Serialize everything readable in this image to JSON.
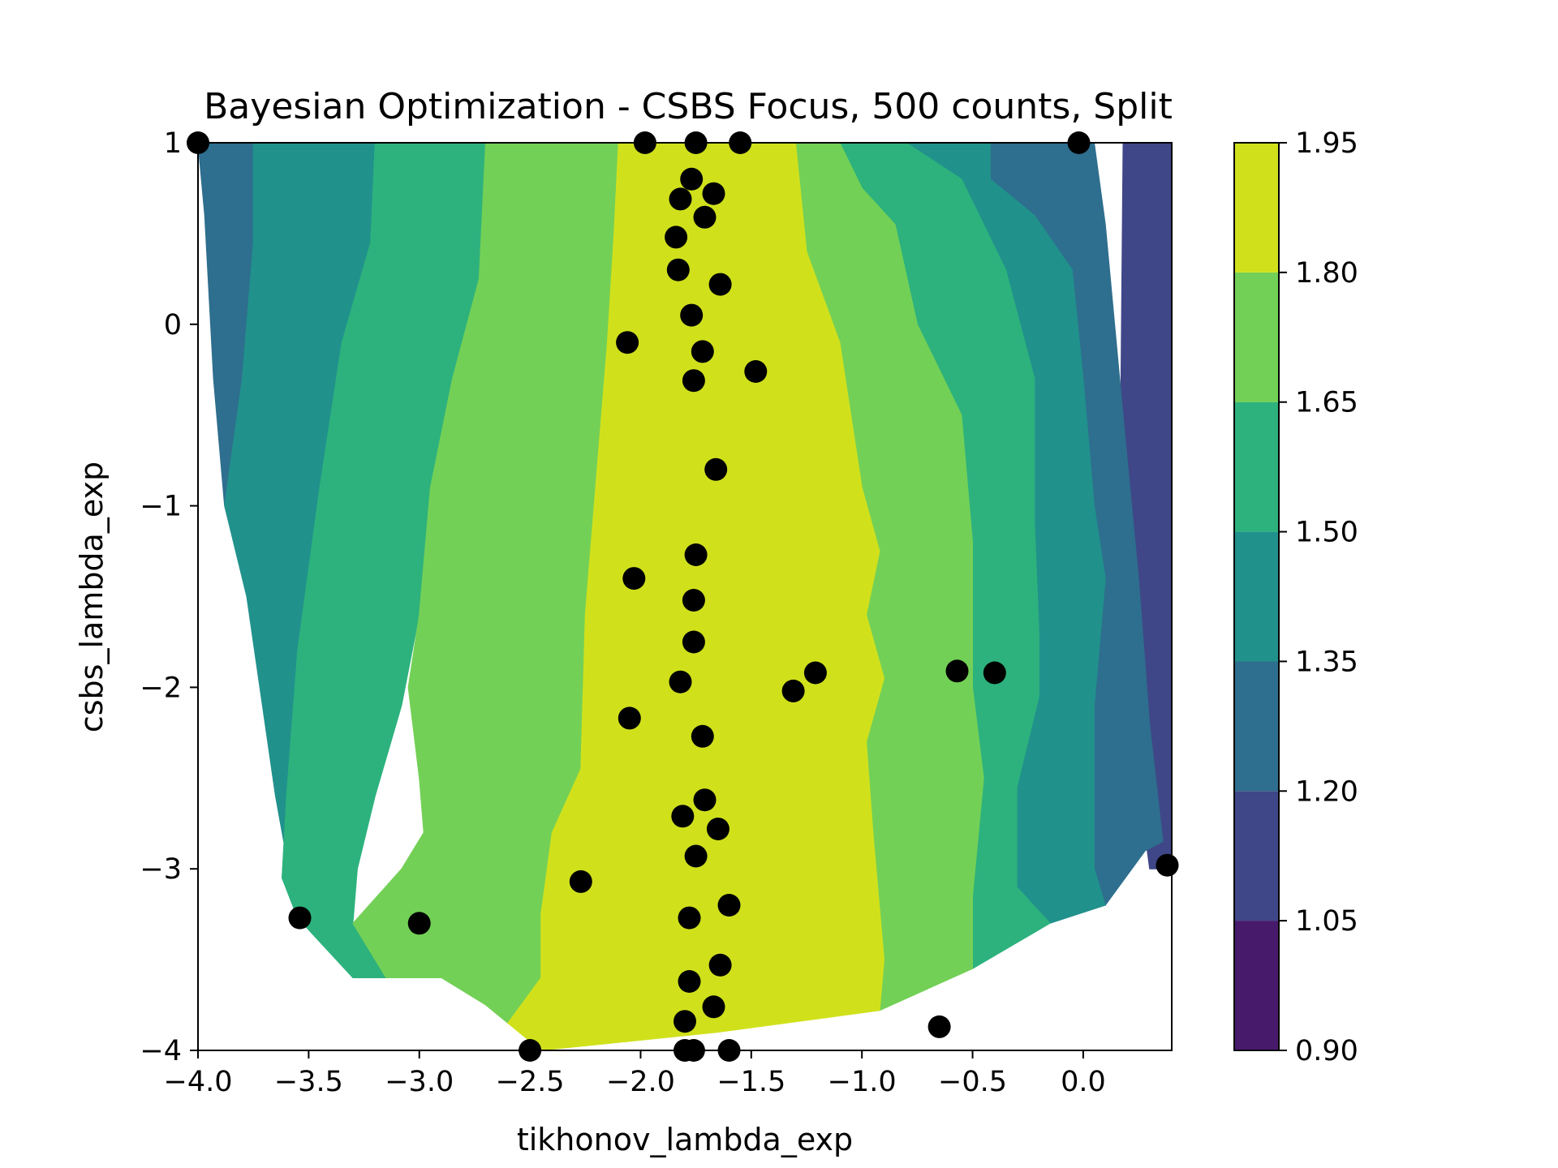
{
  "chart_data": {
    "type": "contour",
    "title": "Bayesian Optimization - CSBS Focus, 500 counts, Split",
    "xlabel": "tikhonov_lambda_exp",
    "ylabel": "csbs_lambda_exp",
    "xlim": [
      -4.0,
      0.4
    ],
    "ylim": [
      -4,
      1
    ],
    "xticks": [
      {
        "value": -4.0,
        "label": "−4.0"
      },
      {
        "value": -3.5,
        "label": "−3.5"
      },
      {
        "value": -3.0,
        "label": "−3.0"
      },
      {
        "value": -2.5,
        "label": "−2.5"
      },
      {
        "value": -2.0,
        "label": "−2.0"
      },
      {
        "value": -1.5,
        "label": "−1.5"
      },
      {
        "value": -1.0,
        "label": "−1.0"
      },
      {
        "value": -0.5,
        "label": "−0.5"
      },
      {
        "value": 0.0,
        "label": "0.0"
      }
    ],
    "yticks": [
      {
        "value": 1,
        "label": "1"
      },
      {
        "value": 0,
        "label": "0"
      },
      {
        "value": -1,
        "label": "−1"
      },
      {
        "value": -2,
        "label": "−2"
      },
      {
        "value": -3,
        "label": "−3"
      },
      {
        "value": -4,
        "label": "−4"
      }
    ],
    "colorbar": {
      "levels": [
        0.9,
        1.05,
        1.2,
        1.35,
        1.5,
        1.65,
        1.8,
        1.95
      ],
      "labels": [
        "0.90",
        "1.05",
        "1.20",
        "1.35",
        "1.50",
        "1.65",
        "1.80",
        "1.95"
      ],
      "colors": [
        "#481a6c",
        "#3f4788",
        "#2e6e8e",
        "#21918c",
        "#2db27d",
        "#73d056",
        "#d0e11c"
      ]
    },
    "contour_bands": [
      {
        "level_index": 1,
        "points": [
          [
            0.18,
            1
          ],
          [
            0.4,
            1
          ],
          [
            0.4,
            -3.0
          ],
          [
            0.3,
            -3.0
          ],
          [
            0.23,
            -2.35
          ],
          [
            0.16,
            -1.75
          ]
        ]
      },
      {
        "level_index": 2,
        "points": [
          [
            -4.0,
            1
          ],
          [
            -3.75,
            1
          ],
          [
            -3.75,
            0.45
          ],
          [
            -3.8,
            -0.3
          ],
          [
            -3.88,
            -1.0
          ],
          [
            -3.93,
            -0.3
          ],
          [
            -3.97,
            0.6
          ]
        ]
      },
      {
        "level_index": 2,
        "points": [
          [
            -0.42,
            1
          ],
          [
            0.05,
            1
          ],
          [
            0.1,
            0.55
          ],
          [
            0.18,
            -0.5
          ],
          [
            0.25,
            -1.4
          ],
          [
            0.3,
            -2.2
          ],
          [
            0.36,
            -2.85
          ],
          [
            0.28,
            -2.9
          ],
          [
            0.1,
            -3.2
          ],
          [
            0.05,
            -3.0
          ],
          [
            0.05,
            -2.1
          ],
          [
            0.1,
            -1.4
          ],
          [
            0.05,
            -1.0
          ],
          [
            0.0,
            -0.3
          ],
          [
            -0.05,
            0.3
          ],
          [
            -0.22,
            0.6
          ],
          [
            -0.42,
            0.8
          ]
        ]
      },
      {
        "level_index": 3,
        "points": [
          [
            -3.75,
            1
          ],
          [
            -3.2,
            1
          ],
          [
            -3.22,
            0.45
          ],
          [
            -3.35,
            -0.1
          ],
          [
            -3.45,
            -0.9
          ],
          [
            -3.55,
            -1.8
          ],
          [
            -3.6,
            -2.6
          ],
          [
            -3.62,
            -3.05
          ],
          [
            -3.55,
            -3.27
          ],
          [
            -3.65,
            -2.6
          ],
          [
            -3.78,
            -1.5
          ],
          [
            -3.88,
            -1.0
          ],
          [
            -3.8,
            -0.3
          ],
          [
            -3.75,
            0.45
          ]
        ]
      },
      {
        "level_index": 3,
        "points": [
          [
            -0.8,
            1
          ],
          [
            -0.42,
            1
          ],
          [
            -0.42,
            0.8
          ],
          [
            -0.22,
            0.6
          ],
          [
            -0.05,
            0.3
          ],
          [
            0.0,
            -0.3
          ],
          [
            0.05,
            -1.0
          ],
          [
            0.1,
            -1.4
          ],
          [
            0.05,
            -2.1
          ],
          [
            0.05,
            -3.0
          ],
          [
            0.1,
            -3.2
          ],
          [
            -0.15,
            -3.3
          ],
          [
            -0.3,
            -3.1
          ],
          [
            -0.3,
            -2.55
          ],
          [
            -0.2,
            -2.05
          ],
          [
            -0.2,
            -1.7
          ],
          [
            -0.22,
            -1.1
          ],
          [
            -0.22,
            -0.3
          ],
          [
            -0.35,
            0.3
          ],
          [
            -0.55,
            0.8
          ]
        ]
      },
      {
        "level_index": 4,
        "points": [
          [
            -3.2,
            1
          ],
          [
            -2.7,
            1
          ],
          [
            -2.73,
            0.25
          ],
          [
            -2.85,
            -0.3
          ],
          [
            -2.95,
            -0.9
          ],
          [
            -3.0,
            -1.6
          ],
          [
            -3.08,
            -2.1
          ],
          [
            -3.2,
            -2.6
          ],
          [
            -3.28,
            -3.0
          ],
          [
            -3.3,
            -3.3
          ],
          [
            -3.15,
            -3.6
          ],
          [
            -3.3,
            -3.6
          ],
          [
            -3.55,
            -3.27
          ],
          [
            -3.62,
            -3.05
          ],
          [
            -3.6,
            -2.6
          ],
          [
            -3.55,
            -1.8
          ],
          [
            -3.45,
            -0.9
          ],
          [
            -3.35,
            -0.1
          ],
          [
            -3.22,
            0.45
          ]
        ]
      },
      {
        "level_index": 4,
        "points": [
          [
            -1.1,
            1
          ],
          [
            -0.8,
            1
          ],
          [
            -0.55,
            0.8
          ],
          [
            -0.35,
            0.3
          ],
          [
            -0.22,
            -0.3
          ],
          [
            -0.22,
            -1.1
          ],
          [
            -0.2,
            -1.7
          ],
          [
            -0.2,
            -2.05
          ],
          [
            -0.3,
            -2.55
          ],
          [
            -0.3,
            -3.1
          ],
          [
            -0.15,
            -3.3
          ],
          [
            -0.5,
            -3.55
          ],
          [
            -0.5,
            -3.15
          ],
          [
            -0.45,
            -2.5
          ],
          [
            -0.5,
            -2.0
          ],
          [
            -0.5,
            -1.2
          ],
          [
            -0.55,
            -0.5
          ],
          [
            -0.75,
            0.0
          ],
          [
            -0.85,
            0.55
          ],
          [
            -1.0,
            0.75
          ]
        ]
      },
      {
        "level_index": 5,
        "points": [
          [
            -2.7,
            1
          ],
          [
            -2.1,
            1
          ],
          [
            -2.12,
            0.5
          ],
          [
            -2.15,
            -0.1
          ],
          [
            -2.2,
            -0.85
          ],
          [
            -2.25,
            -1.6
          ],
          [
            -2.27,
            -2.45
          ],
          [
            -2.4,
            -2.8
          ],
          [
            -2.45,
            -3.25
          ],
          [
            -2.45,
            -3.6
          ],
          [
            -2.6,
            -3.85
          ],
          [
            -2.7,
            -3.75
          ],
          [
            -2.9,
            -3.6
          ],
          [
            -3.15,
            -3.6
          ],
          [
            -3.3,
            -3.3
          ],
          [
            -3.08,
            -3.0
          ],
          [
            -2.98,
            -2.8
          ],
          [
            -3.0,
            -2.5
          ],
          [
            -3.05,
            -2.0
          ],
          [
            -3.0,
            -1.6
          ],
          [
            -2.95,
            -0.9
          ],
          [
            -2.85,
            -0.3
          ],
          [
            -2.73,
            0.25
          ]
        ]
      },
      {
        "level_index": 5,
        "points": [
          [
            -1.3,
            1
          ],
          [
            -1.1,
            1
          ],
          [
            -1.0,
            0.75
          ],
          [
            -0.85,
            0.55
          ],
          [
            -0.75,
            0.0
          ],
          [
            -0.55,
            -0.5
          ],
          [
            -0.5,
            -1.2
          ],
          [
            -0.5,
            -2.0
          ],
          [
            -0.45,
            -2.5
          ],
          [
            -0.5,
            -3.15
          ],
          [
            -0.5,
            -3.55
          ],
          [
            -0.92,
            -3.78
          ],
          [
            -0.9,
            -3.5
          ],
          [
            -0.95,
            -2.8
          ],
          [
            -0.98,
            -2.3
          ],
          [
            -0.9,
            -1.95
          ],
          [
            -0.98,
            -1.6
          ],
          [
            -0.92,
            -1.25
          ],
          [
            -1.0,
            -0.9
          ],
          [
            -1.1,
            -0.1
          ],
          [
            -1.25,
            0.4
          ]
        ]
      },
      {
        "level_index": 6,
        "points": [
          [
            -2.1,
            1
          ],
          [
            -1.3,
            1
          ],
          [
            -1.25,
            0.4
          ],
          [
            -1.1,
            -0.1
          ],
          [
            -1.0,
            -0.9
          ],
          [
            -0.92,
            -1.25
          ],
          [
            -0.98,
            -1.6
          ],
          [
            -0.9,
            -1.95
          ],
          [
            -0.98,
            -2.3
          ],
          [
            -0.95,
            -2.8
          ],
          [
            -0.9,
            -3.5
          ],
          [
            -0.92,
            -3.78
          ],
          [
            -1.65,
            -3.9
          ],
          [
            -2.45,
            -4.0
          ],
          [
            -2.6,
            -3.85
          ],
          [
            -2.45,
            -3.6
          ],
          [
            -2.45,
            -3.25
          ],
          [
            -2.4,
            -2.8
          ],
          [
            -2.27,
            -2.45
          ],
          [
            -2.25,
            -1.6
          ],
          [
            -2.2,
            -0.85
          ],
          [
            -2.15,
            -0.1
          ],
          [
            -2.12,
            0.5
          ]
        ]
      }
    ],
    "series": [
      {
        "name": "",
        "color": "#000000",
        "points": [
          [
            -4.0,
            1
          ],
          [
            -1.98,
            1
          ],
          [
            -1.75,
            1
          ],
          [
            -1.55,
            1
          ],
          [
            -0.02,
            1
          ],
          [
            -1.77,
            0.8
          ],
          [
            -1.67,
            0.72
          ],
          [
            -1.82,
            0.69
          ],
          [
            -1.71,
            0.59
          ],
          [
            -1.84,
            0.48
          ],
          [
            -1.83,
            0.3
          ],
          [
            -1.64,
            0.22
          ],
          [
            -1.77,
            0.05
          ],
          [
            -2.06,
            -0.1
          ],
          [
            -1.72,
            -0.15
          ],
          [
            -1.48,
            -0.26
          ],
          [
            -1.76,
            -0.31
          ],
          [
            -1.66,
            -0.8
          ],
          [
            -1.75,
            -1.27
          ],
          [
            -2.03,
            -1.4
          ],
          [
            -1.76,
            -1.52
          ],
          [
            -1.76,
            -1.75
          ],
          [
            -1.82,
            -1.97
          ],
          [
            -1.21,
            -1.92
          ],
          [
            -1.31,
            -2.02
          ],
          [
            -0.57,
            -1.91
          ],
          [
            -0.4,
            -1.92
          ],
          [
            -2.05,
            -2.17
          ],
          [
            -1.72,
            -2.27
          ],
          [
            -1.71,
            -2.62
          ],
          [
            -1.81,
            -2.71
          ],
          [
            -1.65,
            -2.78
          ],
          [
            -1.75,
            -2.93
          ],
          [
            -2.27,
            -3.07
          ],
          [
            -1.6,
            -3.2
          ],
          [
            -1.78,
            -3.27
          ],
          [
            -3.54,
            -3.27
          ],
          [
            -3.0,
            -3.3
          ],
          [
            -1.64,
            -3.53
          ],
          [
            -1.78,
            -3.62
          ],
          [
            -1.67,
            -3.76
          ],
          [
            -0.65,
            -3.87
          ],
          [
            -1.8,
            -3.84
          ],
          [
            -2.5,
            -4.0
          ],
          [
            -1.8,
            -4.0
          ],
          [
            -1.76,
            -4.0
          ],
          [
            -1.6,
            -4.0
          ],
          [
            0.38,
            -2.98
          ]
        ]
      }
    ]
  }
}
